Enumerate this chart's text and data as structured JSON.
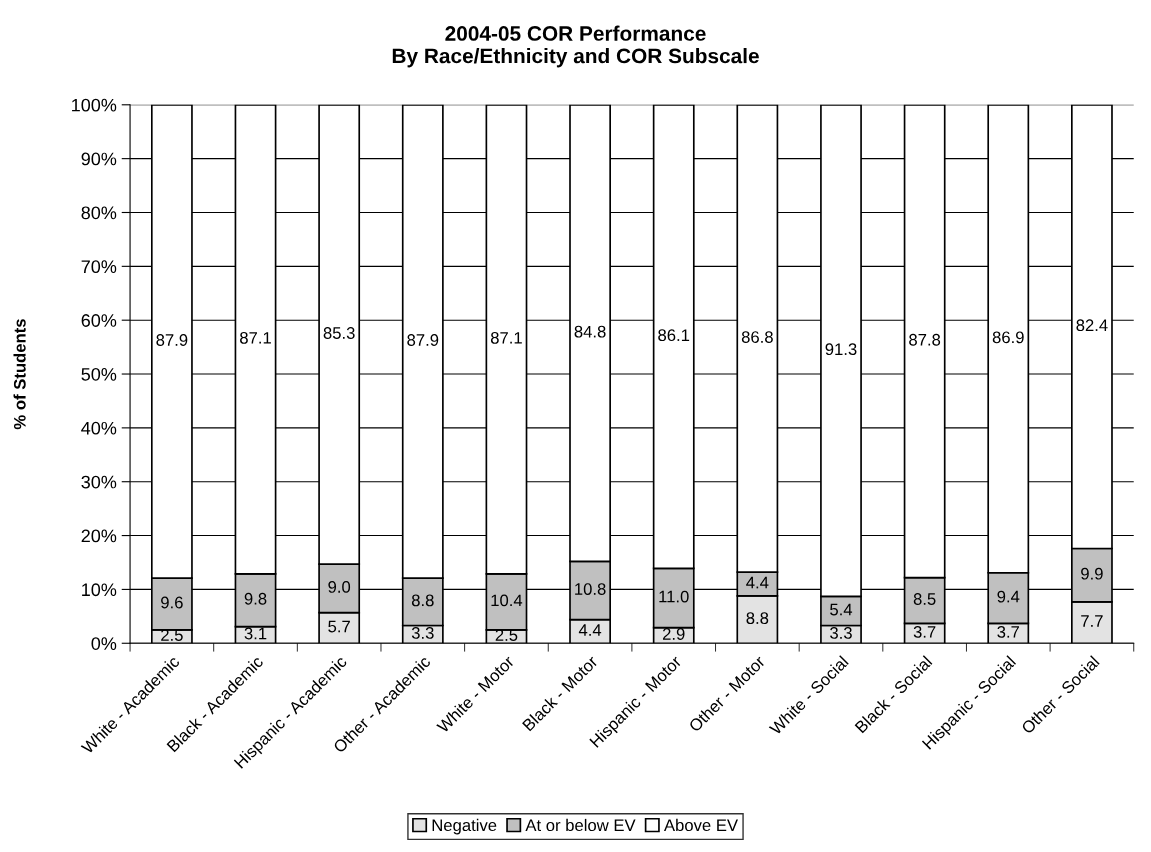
{
  "chart_data": {
    "type": "bar",
    "stacked": true,
    "title": "2004-05 COR Performance\nBy Race/Ethnicity and COR Subscale",
    "ylabel": "% of Students",
    "categories": [
      "White - Academic",
      "Black - Academic",
      "Hispanic - Academic",
      "Other - Academic",
      "White - Motor",
      "Black - Motor",
      "Hispanic - Motor",
      "Other - Motor",
      "White - Social",
      "Black - Social",
      "Hispanic - Social",
      "Other - Social"
    ],
    "series": [
      {
        "name": "Negative",
        "color": "#e3e3e3",
        "values": [
          2.5,
          3.1,
          5.7,
          3.3,
          2.5,
          4.4,
          2.9,
          8.8,
          3.3,
          3.7,
          3.7,
          7.7
        ],
        "value_labels": [
          "2.5",
          "3.1",
          "5.7",
          "3.3",
          "2.5",
          "4.4",
          "2.9",
          "8.8",
          "3.3",
          "3.7",
          "3.7",
          "7.7"
        ]
      },
      {
        "name": "At or below EV",
        "color": "#c0c0c0",
        "values": [
          9.6,
          9.8,
          9.0,
          8.8,
          10.4,
          10.8,
          11.0,
          4.4,
          5.4,
          8.5,
          9.4,
          9.9
        ],
        "value_labels": [
          "9.6",
          "9.8",
          "9.0",
          "8.8",
          "10.4",
          "10.8",
          "11.0",
          "4.4",
          "5.4",
          "8.5",
          "9.4",
          "9.9"
        ]
      },
      {
        "name": "Above EV",
        "color": "#ffffff",
        "values": [
          87.9,
          87.1,
          85.3,
          87.9,
          87.1,
          84.8,
          86.1,
          86.8,
          91.3,
          87.8,
          86.9,
          82.4
        ],
        "value_labels": [
          "87.9",
          "87.1",
          "85.3",
          "87.9",
          "87.1",
          "84.8",
          "86.1",
          "86.8",
          "91.3",
          "87.8",
          "86.9",
          "82.4"
        ]
      }
    ],
    "ylim": [
      0,
      100
    ],
    "yticks": [
      {
        "value": 0,
        "label": "0%"
      },
      {
        "value": 10,
        "label": "10%"
      },
      {
        "value": 20,
        "label": "20%"
      },
      {
        "value": 30,
        "label": "30%"
      },
      {
        "value": 40,
        "label": "40%"
      },
      {
        "value": 50,
        "label": "50%"
      },
      {
        "value": 60,
        "label": "60%"
      },
      {
        "value": 70,
        "label": "70%"
      },
      {
        "value": 80,
        "label": "80%"
      },
      {
        "value": 90,
        "label": "90%"
      },
      {
        "value": 100,
        "label": "100%"
      }
    ],
    "grid": "y",
    "legend": "bottom"
  }
}
